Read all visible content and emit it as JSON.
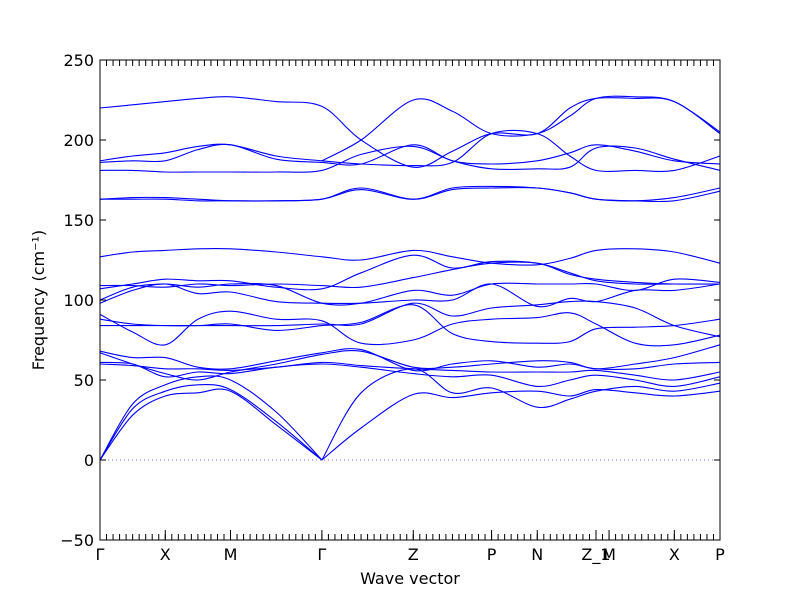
{
  "chart_data": {
    "type": "line",
    "xlabel": "Wave vector",
    "ylabel": "Frequency",
    "ylabel_unit": "(cm⁻¹)",
    "ylim": [
      -50,
      250
    ],
    "yticks": [
      -50,
      0,
      50,
      100,
      150,
      200,
      250
    ],
    "xlim": [
      0,
      9.5
    ],
    "path_points": [
      {
        "label": "Γ",
        "x": 0.0
      },
      {
        "label": "X",
        "x": 1.0
      },
      {
        "label": "M",
        "x": 2.0
      },
      {
        "label": "Γ",
        "x": 3.4
      },
      {
        "label": "Z",
        "x": 4.8
      },
      {
        "label": "P",
        "x": 6.0
      },
      {
        "label": "N",
        "x": 6.7
      },
      {
        "label": "Z_1",
        "x": 7.6
      },
      {
        "label": "M",
        "x": 7.8
      },
      {
        "label": "X",
        "x": 8.8
      },
      {
        "label": "P",
        "x": 9.5
      }
    ],
    "grid": false,
    "zero_line": true,
    "series_color": "#0000ff",
    "series": [
      {
        "x": [
          0,
          0.5,
          1,
          1.5,
          2,
          2.7,
          3.4
        ],
        "y": [
          0,
          28,
          40,
          42,
          43,
          22,
          0
        ]
      },
      {
        "x": [
          0,
          0.5,
          1,
          1.5,
          2,
          2.7,
          3.4
        ],
        "y": [
          0,
          32,
          43,
          47,
          44,
          24,
          0
        ]
      },
      {
        "x": [
          0,
          0.5,
          1,
          1.5,
          2,
          2.7,
          3.4
        ],
        "y": [
          0,
          35,
          47,
          52,
          50,
          30,
          0
        ]
      },
      {
        "x": [
          3.4,
          4.0,
          4.8,
          5.4,
          6.0,
          6.7,
          7.2,
          7.6,
          8.2,
          8.8,
          9.5
        ],
        "y": [
          0,
          20,
          41,
          39,
          42,
          43,
          40,
          44,
          42,
          40,
          43
        ]
      },
      {
        "x": [
          3.4,
          4.0,
          4.8,
          5.4,
          6.0,
          6.7,
          7.2,
          7.6,
          8.2,
          8.8,
          9.5
        ],
        "y": [
          0,
          42,
          57,
          42,
          45,
          33,
          38,
          43,
          46,
          43,
          48
        ]
      },
      {
        "x": [
          0,
          0.5,
          1,
          1.5,
          2,
          2.7,
          3.4,
          4.0,
          4.8,
          5.4,
          6.0,
          6.7,
          7.2,
          7.6,
          8.2,
          8.8,
          9.5
        ],
        "y": [
          61,
          60,
          52,
          55,
          54,
          58,
          60,
          58,
          54,
          52,
          53,
          46,
          50,
          53,
          50,
          46,
          52
        ]
      },
      {
        "x": [
          0,
          0.5,
          1,
          1.5,
          2,
          2.7,
          3.4,
          4.0,
          4.8,
          5.4,
          6.0,
          6.7,
          7.2,
          7.6,
          8.2,
          8.8,
          9.5
        ],
        "y": [
          60,
          59,
          57,
          57,
          56,
          58,
          61,
          59,
          57,
          56,
          55,
          55,
          55,
          56,
          53,
          50,
          55
        ]
      },
      {
        "x": [
          0,
          0.5,
          1,
          1.5,
          2,
          2.7,
          3.4,
          4.0,
          4.8,
          5.4,
          6.0,
          6.7,
          7.2,
          7.6,
          8.2,
          8.8,
          9.5
        ],
        "y": [
          68,
          64,
          64,
          58,
          57,
          62,
          67,
          69,
          56,
          60,
          62,
          58,
          60,
          57,
          57,
          60,
          61
        ]
      },
      {
        "x": [
          0,
          0.5,
          1,
          1.5,
          2,
          2.7,
          3.4,
          4.0,
          4.8,
          5.4,
          6.0,
          6.7,
          7.2,
          7.6,
          8.2,
          8.8,
          9.5
        ],
        "y": [
          67,
          60,
          54,
          50,
          55,
          60,
          66,
          68,
          58,
          58,
          60,
          62,
          61,
          57,
          60,
          64,
          72
        ]
      },
      {
        "x": [
          0,
          0.5,
          1,
          1.5,
          2,
          2.7,
          3.4,
          4.0,
          4.8,
          5.4,
          6.0,
          6.7,
          7.2,
          7.6,
          8.2,
          8.8,
          9.5
        ],
        "y": [
          88,
          85,
          84,
          84,
          85,
          81,
          84,
          86,
          97,
          79,
          74,
          73,
          74,
          82,
          83,
          84,
          88
        ]
      },
      {
        "x": [
          0,
          0.5,
          1,
          1.5,
          2,
          2.7,
          3.4,
          4.0,
          4.8,
          5.4,
          6.0,
          6.7,
          7.2,
          7.6,
          8.2,
          8.8,
          9.5
        ],
        "y": [
          91,
          80,
          72,
          88,
          93,
          88,
          87,
          73,
          75,
          85,
          88,
          89,
          92,
          85,
          73,
          72,
          78
        ]
      },
      {
        "x": [
          0,
          0.5,
          1,
          1.5,
          2,
          2.7,
          3.4,
          4.0,
          4.8,
          5.4,
          6.0,
          6.7,
          7.2,
          7.6,
          8.2,
          8.8,
          9.5
        ],
        "y": [
          84,
          84,
          84,
          84,
          84,
          84,
          85,
          85,
          98,
          90,
          95,
          97,
          99,
          99,
          95,
          84,
          77
        ]
      },
      {
        "x": [
          0,
          0.5,
          1,
          1.5,
          2,
          2.7,
          3.4,
          4.0,
          4.8,
          5.4,
          6.0,
          6.7,
          7.2,
          7.6,
          8.2,
          8.8,
          9.5
        ],
        "y": [
          98,
          106,
          110,
          104,
          105,
          99,
          98,
          98,
          100,
          100,
          110,
          96,
          101,
          99,
          106,
          106,
          110
        ]
      },
      {
        "x": [
          0,
          0.5,
          1,
          1.5,
          2,
          2.7,
          3.4,
          4.0,
          4.8,
          5.4,
          6.0,
          6.7,
          7.2,
          7.6,
          8.2,
          8.8,
          9.5
        ],
        "y": [
          100,
          108,
          110,
          108,
          110,
          109,
          98,
          98,
          106,
          103,
          110,
          110,
          110,
          110,
          106,
          113,
          111
        ]
      },
      {
        "x": [
          0,
          0.5,
          1,
          1.5,
          2,
          2.7,
          3.4,
          4.0,
          4.8,
          5.4,
          6.0,
          6.7,
          7.2,
          7.6,
          8.2,
          8.8,
          9.5
        ],
        "y": [
          107,
          110,
          113,
          112,
          112,
          108,
          107,
          117,
          128,
          120,
          124,
          123,
          117,
          112,
          110,
          110,
          110
        ]
      },
      {
        "x": [
          0,
          0.5,
          1,
          1.5,
          2,
          2.7,
          3.4,
          4.0,
          4.8,
          5.4,
          6.0,
          6.7,
          7.2,
          7.6,
          8.2,
          8.8,
          9.5
        ],
        "y": [
          109,
          109,
          108,
          110,
          109,
          110,
          109,
          108,
          114,
          119,
          123,
          123,
          116,
          113,
          111,
          110,
          110
        ]
      },
      {
        "x": [
          0,
          0.5,
          1,
          1.5,
          2,
          2.7,
          3.4,
          4.0,
          4.8,
          5.4,
          6.0,
          6.7,
          7.2,
          7.6,
          8.2,
          8.8,
          9.5
        ],
        "y": [
          127,
          130,
          131,
          132,
          132,
          130,
          127,
          125,
          131,
          127,
          123,
          122,
          126,
          131,
          132,
          130,
          123
        ]
      },
      {
        "x": [
          0,
          0.5,
          1,
          1.5,
          2,
          2.7,
          3.4,
          4.0,
          4.8,
          5.4,
          6.0,
          6.7,
          7.2,
          7.6,
          8.2,
          8.8,
          9.5
        ],
        "y": [
          163,
          163,
          163,
          162,
          162,
          162,
          163,
          170,
          163,
          169,
          170,
          170,
          167,
          163,
          162,
          162,
          168
        ]
      },
      {
        "x": [
          0,
          0.5,
          1,
          1.5,
          2,
          2.7,
          3.4,
          4.0,
          4.8,
          5.4,
          6.0,
          6.7,
          7.2,
          7.6,
          8.2,
          8.8,
          9.5
        ],
        "y": [
          163,
          164,
          164,
          163,
          162,
          162,
          163,
          169,
          163,
          170,
          171,
          170,
          167,
          163,
          162,
          164,
          170
        ]
      },
      {
        "x": [
          0,
          0.5,
          1,
          1.5,
          2,
          2.7,
          3.4,
          4.0,
          4.8,
          5.4,
          6.0,
          6.7,
          7.2,
          7.6,
          8.2,
          8.8,
          9.5
        ],
        "y": [
          181,
          181,
          180,
          180,
          180,
          180,
          181,
          191,
          196,
          187,
          182,
          182,
          183,
          195,
          195,
          188,
          181
        ]
      },
      {
        "x": [
          0,
          0.5,
          1,
          1.5,
          2,
          2.7,
          3.4,
          4.0,
          4.8,
          5.4,
          6.0,
          6.7,
          7.2,
          7.6,
          8.2,
          8.8,
          9.5
        ],
        "y": [
          186,
          187,
          187,
          194,
          197,
          188,
          186,
          185,
          197,
          187,
          185,
          187,
          192,
          197,
          193,
          187,
          185
        ]
      },
      {
        "x": [
          0,
          0.5,
          1,
          1.5,
          2,
          2.7,
          3.4,
          4.0,
          4.8,
          5.4,
          6.0,
          6.7,
          7.2,
          7.6,
          8.2,
          8.8,
          9.5
        ],
        "y": [
          187,
          190,
          192,
          196,
          197,
          190,
          187,
          185,
          184,
          186,
          204,
          204,
          190,
          181,
          181,
          181,
          190
        ]
      },
      {
        "x": [
          0,
          0.5,
          1,
          1.5,
          2,
          2.7,
          3.4,
          4.0,
          4.8,
          5.4,
          6.0,
          6.7,
          7.2,
          7.6,
          8.2,
          8.8,
          9.5
        ],
        "y": [
          220,
          222,
          224,
          226,
          227,
          224,
          221,
          200,
          183,
          193,
          204,
          204,
          220,
          226,
          226,
          224,
          204
        ]
      },
      {
        "x": [
          3.4,
          4.0,
          4.8,
          5.4,
          6.0,
          6.7,
          7.2,
          7.6,
          8.2,
          8.8,
          9.5
        ],
        "y": [
          187,
          200,
          225,
          218,
          204,
          204,
          215,
          226,
          227,
          224,
          205
        ]
      }
    ]
  }
}
